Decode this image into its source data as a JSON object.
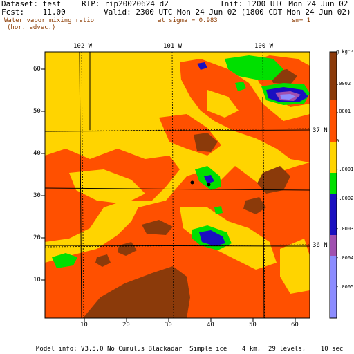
{
  "header": {
    "dataset": "Dataset: test",
    "rip": "RIP: rip20020624 d2",
    "init": "Init: 1200 UTC Mon 24 Jun 02",
    "fcst": "Fcst:    11.00",
    "valid": "Valid: 2300 UTC Mon 24 Jun 02 (1800 CDT Mon 24 Jun 02)",
    "field_line1": "Water vapor mixing ratio",
    "field_line2": "(hor. advec.)",
    "sigma": "at sigma = 0.983",
    "sm": "sm= 1"
  },
  "map": {
    "top_labels": [
      "102 W",
      "101 W",
      "100 W"
    ],
    "right_labels": [
      "37 N",
      "36 N"
    ],
    "y_ticks": [
      "60",
      "50",
      "40",
      "30",
      "20",
      "10"
    ],
    "x_ticks": [
      "10",
      "20",
      "30",
      "40",
      "50",
      "60"
    ]
  },
  "colorbar": {
    "units": "g kg⁻¹",
    "labels": [
      ".0002",
      ".0001",
      "0",
      "-.0001",
      "-.0002",
      "-.0003",
      "-.0004",
      "-.0005"
    ],
    "colors": [
      "#8b3a0a",
      "#ff5000",
      "#ffd400",
      "#00e000",
      "#1a10c0",
      "#a050b0",
      "#8c8cff"
    ]
  },
  "footer": {
    "model_info": "Model info: V3.5.0 No Cumulus Blackadar  Simple ice    4 km,  29 levels,    10 sec"
  }
}
